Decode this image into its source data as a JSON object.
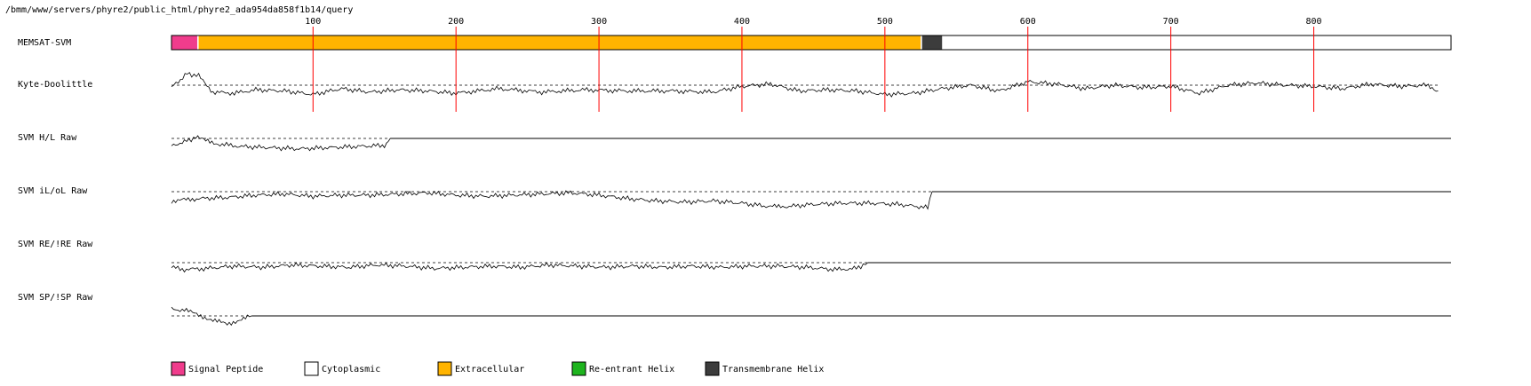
{
  "header": {
    "path": "/bmm/www/servers/phyre2/public_html/phyre2_ada954da858f1b14/query"
  },
  "colors": {
    "signal_peptide": "#f03c8c",
    "cytoplasmic": "#ffffff",
    "extracellular": "#ffb400",
    "reentrant_helix": "#1eb41e",
    "transmembrane_helix": "#3c3c3c",
    "tick_line": "#ff0000",
    "trace": "#000000"
  },
  "chart_data": {
    "type": "line",
    "title": "",
    "sequence_length": 896,
    "x_ticks": [
      100,
      200,
      300,
      400,
      500,
      600,
      700,
      800
    ],
    "tracks": [
      {
        "label": "MEMSAT-SVM",
        "kind": "topology",
        "segments": [
          {
            "start": 1,
            "end": 19,
            "type": "signal_peptide"
          },
          {
            "start": 20,
            "end": 525,
            "type": "extracellular"
          },
          {
            "start": 526,
            "end": 540,
            "type": "transmembrane_helix"
          },
          {
            "start": 541,
            "end": 896,
            "type": "cytoplasmic"
          }
        ]
      },
      {
        "label": "Kyte-Doolittle",
        "kind": "profile",
        "threshold": 0,
        "extent": 887,
        "values": [
          [
            1,
            -0.2
          ],
          [
            12,
            1.0
          ],
          [
            20,
            0.8
          ],
          [
            30,
            -0.6
          ],
          [
            45,
            -0.7
          ],
          [
            60,
            -0.4
          ],
          [
            80,
            -0.5
          ],
          [
            100,
            -0.8
          ],
          [
            120,
            -0.3
          ],
          [
            140,
            -0.6
          ],
          [
            160,
            -0.4
          ],
          [
            180,
            -0.5
          ],
          [
            200,
            -0.7
          ],
          [
            230,
            -0.3
          ],
          [
            260,
            -0.6
          ],
          [
            290,
            -0.4
          ],
          [
            320,
            -0.5
          ],
          [
            350,
            -0.5
          ],
          [
            380,
            -0.6
          ],
          [
            400,
            -0.1
          ],
          [
            420,
            0.1
          ],
          [
            440,
            -0.5
          ],
          [
            460,
            -0.4
          ],
          [
            480,
            -0.5
          ],
          [
            500,
            -0.8
          ],
          [
            520,
            -0.7
          ],
          [
            540,
            -0.3
          ],
          [
            560,
            0.0
          ],
          [
            580,
            -0.5
          ],
          [
            600,
            0.3
          ],
          [
            620,
            0.1
          ],
          [
            640,
            -0.3
          ],
          [
            660,
            0.0
          ],
          [
            680,
            -0.2
          ],
          [
            700,
            -0.1
          ],
          [
            720,
            -0.7
          ],
          [
            740,
            0.0
          ],
          [
            760,
            0.2
          ],
          [
            780,
            0.0
          ],
          [
            800,
            -0.1
          ],
          [
            820,
            -0.3
          ],
          [
            840,
            0.1
          ],
          [
            860,
            -0.1
          ],
          [
            880,
            0.0
          ],
          [
            887,
            -0.5
          ]
        ]
      },
      {
        "label": "SVM H/L Raw",
        "kind": "profile",
        "threshold": 0,
        "extent": 154,
        "values": [
          [
            1,
            -0.6
          ],
          [
            10,
            -0.3
          ],
          [
            18,
            0.1
          ],
          [
            25,
            -0.2
          ],
          [
            35,
            -0.5
          ],
          [
            50,
            -0.7
          ],
          [
            70,
            -0.8
          ],
          [
            90,
            -0.9
          ],
          [
            110,
            -0.8
          ],
          [
            130,
            -0.7
          ],
          [
            150,
            -0.6
          ],
          [
            154,
            0.0
          ]
        ]
      },
      {
        "label": "SVM iL/oL Raw",
        "kind": "profile",
        "threshold": 0,
        "extent": 533,
        "values": [
          [
            1,
            -0.8
          ],
          [
            20,
            -0.6
          ],
          [
            40,
            -0.5
          ],
          [
            60,
            -0.3
          ],
          [
            80,
            -0.2
          ],
          [
            100,
            -0.4
          ],
          [
            120,
            -0.3
          ],
          [
            140,
            -0.3
          ],
          [
            160,
            -0.2
          ],
          [
            180,
            -0.1
          ],
          [
            200,
            -0.3
          ],
          [
            220,
            -0.4
          ],
          [
            240,
            -0.3
          ],
          [
            260,
            -0.2
          ],
          [
            280,
            -0.1
          ],
          [
            300,
            -0.3
          ],
          [
            320,
            -0.6
          ],
          [
            340,
            -0.8
          ],
          [
            360,
            -0.9
          ],
          [
            380,
            -0.8
          ],
          [
            400,
            -1.0
          ],
          [
            420,
            -1.3
          ],
          [
            430,
            -1.3
          ],
          [
            450,
            -1.1
          ],
          [
            470,
            -1.0
          ],
          [
            490,
            -1.0
          ],
          [
            510,
            -1.1
          ],
          [
            530,
            -1.4
          ],
          [
            533,
            0.0
          ]
        ]
      },
      {
        "label": "SVM RE/!RE Raw",
        "kind": "profile",
        "threshold": 0,
        "extent": 488,
        "values": [
          [
            1,
            -0.4
          ],
          [
            10,
            -0.6
          ],
          [
            25,
            -0.5
          ],
          [
            45,
            -0.3
          ],
          [
            65,
            -0.4
          ],
          [
            85,
            -0.2
          ],
          [
            105,
            -0.3
          ],
          [
            125,
            -0.4
          ],
          [
            145,
            -0.2
          ],
          [
            165,
            -0.3
          ],
          [
            185,
            -0.5
          ],
          [
            205,
            -0.4
          ],
          [
            225,
            -0.3
          ],
          [
            245,
            -0.4
          ],
          [
            265,
            -0.2
          ],
          [
            285,
            -0.3
          ],
          [
            305,
            -0.4
          ],
          [
            325,
            -0.3
          ],
          [
            345,
            -0.4
          ],
          [
            365,
            -0.3
          ],
          [
            385,
            -0.4
          ],
          [
            405,
            -0.3
          ],
          [
            425,
            -0.3
          ],
          [
            445,
            -0.4
          ],
          [
            465,
            -0.6
          ],
          [
            480,
            -0.5
          ],
          [
            488,
            0.0
          ]
        ]
      },
      {
        "label": "SVM SP/!SP Raw",
        "kind": "profile",
        "threshold": 0,
        "extent": 57,
        "values": [
          [
            1,
            0.6
          ],
          [
            10,
            0.5
          ],
          [
            20,
            0.1
          ],
          [
            30,
            -0.4
          ],
          [
            40,
            -0.7
          ],
          [
            50,
            -0.3
          ],
          [
            57,
            0.0
          ]
        ]
      }
    ],
    "legend": [
      {
        "label": "Signal Peptide",
        "color_key": "signal_peptide"
      },
      {
        "label": "Cytoplasmic",
        "color_key": "cytoplasmic"
      },
      {
        "label": "Extracellular",
        "color_key": "extracellular"
      },
      {
        "label": "Re-entrant Helix",
        "color_key": "reentrant_helix"
      },
      {
        "label": "Transmembrane Helix",
        "color_key": "transmembrane_helix"
      }
    ],
    "legend_placement": "bottom-left"
  }
}
